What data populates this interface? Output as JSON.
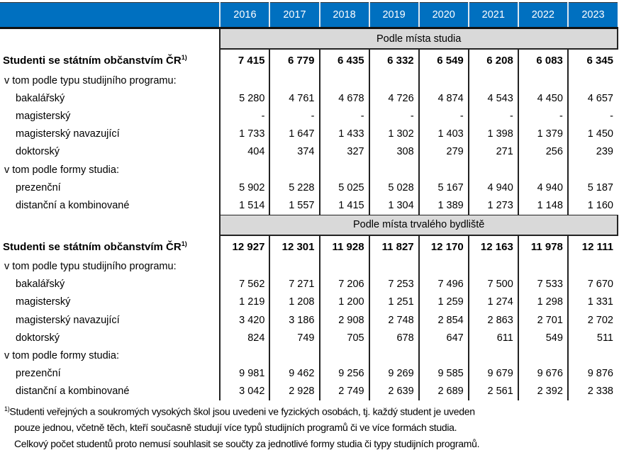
{
  "years": [
    "2016",
    "2017",
    "2018",
    "2019",
    "2020",
    "2021",
    "2022",
    "2023"
  ],
  "sections": [
    {
      "title": "Podle místa studia",
      "total": {
        "label": "Studenti se státním občanstvím ČR",
        "sup": "1)",
        "values": [
          "7 415",
          "6 779",
          "6 435",
          "6 332",
          "6 549",
          "6 208",
          "6 083",
          "6 345"
        ]
      },
      "rows": [
        {
          "label": "v tom podle typu studijního programu:",
          "group": true,
          "values": []
        },
        {
          "label": "bakalářský",
          "values": [
            "5 280",
            "4 761",
            "4 678",
            "4 726",
            "4 874",
            "4 543",
            "4 450",
            "4 657"
          ]
        },
        {
          "label": "magisterský",
          "values": [
            "-",
            "-",
            "-",
            "-",
            "-",
            "-",
            "-",
            "-"
          ]
        },
        {
          "label": "magisterský navazující",
          "values": [
            "1 733",
            "1 647",
            "1 433",
            "1 302",
            "1 403",
            "1 398",
            "1 379",
            "1 450"
          ]
        },
        {
          "label": "doktorský",
          "values": [
            "404",
            "374",
            "327",
            "308",
            "279",
            "271",
            "256",
            "239"
          ]
        },
        {
          "label": "v tom podle formy studia:",
          "group": true,
          "values": []
        },
        {
          "label": "prezenční",
          "values": [
            "5 902",
            "5 228",
            "5 025",
            "5 028",
            "5 167",
            "4 940",
            "4 940",
            "5 187"
          ]
        },
        {
          "label": "distanční a kombinované",
          "values": [
            "1 514",
            "1 557",
            "1 415",
            "1 304",
            "1 389",
            "1 273",
            "1 148",
            "1 160"
          ]
        }
      ]
    },
    {
      "title": "Podle místa trvalého bydliště",
      "total": {
        "label": "Studenti se státním občanstvím ČR",
        "sup": "1)",
        "values": [
          "12 927",
          "12 301",
          "11 928",
          "11 827",
          "12 170",
          "12 163",
          "11 978",
          "12 111"
        ]
      },
      "rows": [
        {
          "label": "v tom podle typu studijního programu:",
          "group": true,
          "values": []
        },
        {
          "label": "bakalářský",
          "values": [
            "7 562",
            "7 271",
            "7 206",
            "7 253",
            "7 496",
            "7 500",
            "7 533",
            "7 670"
          ]
        },
        {
          "label": "magisterský",
          "values": [
            "1 219",
            "1 208",
            "1 200",
            "1 251",
            "1 259",
            "1 274",
            "1 298",
            "1 331"
          ]
        },
        {
          "label": "magisterský navazující",
          "values": [
            "3 420",
            "3 186",
            "2 908",
            "2 748",
            "2 854",
            "2 863",
            "2 701",
            "2 702"
          ]
        },
        {
          "label": "doktorský",
          "values": [
            "824",
            "749",
            "705",
            "678",
            "647",
            "611",
            "549",
            "511"
          ]
        },
        {
          "label": "v tom podle formy studia:",
          "group": true,
          "values": []
        },
        {
          "label": "prezenční",
          "values": [
            "9 981",
            "9 462",
            "9 256",
            "9 269",
            "9 585",
            "9 679",
            "9 676",
            "9 876"
          ]
        },
        {
          "label": "distanční a kombinované",
          "values": [
            "3 042",
            "2 928",
            "2 749",
            "2 639",
            "2 689",
            "2 561",
            "2 392",
            "2 338"
          ]
        }
      ]
    }
  ],
  "footnote": {
    "mark": "1)",
    "lines": [
      "Studenti veřejných a soukromých vysokých škol jsou uvedeni ve fyzických osobách, tj. každý student je uveden",
      "pouze jednou, včetně těch, kteří současně studují více typů studijních programů či ve více formách studia.",
      "Celkový počet studentů proto nemusí souhlasit se součty za jednotlivé formy studia či typy studijních programů."
    ]
  },
  "colors": {
    "header": "#0070c0",
    "section": "#d9d9d9"
  }
}
